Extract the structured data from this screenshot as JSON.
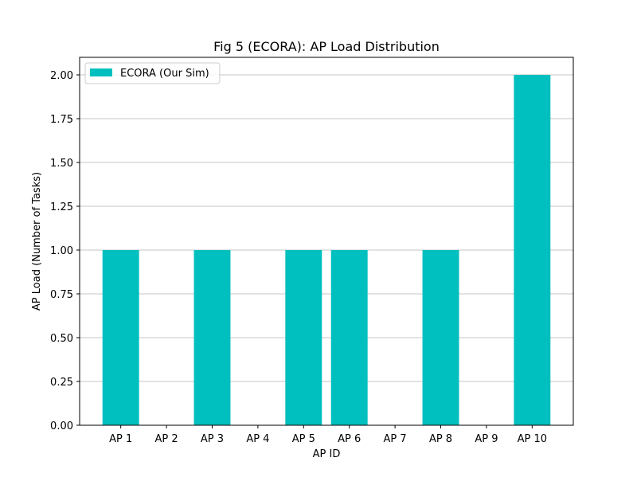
{
  "chart_data": {
    "type": "bar",
    "title": "Fig 5 (ECORA): AP Load Distribution",
    "xlabel": "AP ID",
    "ylabel": "AP Load (Number of Tasks)",
    "categories": [
      "AP 1",
      "AP 2",
      "AP 3",
      "AP 4",
      "AP 5",
      "AP 6",
      "AP 7",
      "AP 8",
      "AP 9",
      "AP 10"
    ],
    "series": [
      {
        "name": "ECORA (Our Sim)",
        "values": [
          1,
          0,
          1,
          0,
          1,
          1,
          0,
          1,
          0,
          2
        ],
        "color": "#00bfbf"
      }
    ],
    "ylim": [
      0,
      2.1
    ],
    "yticks": [
      "0.00",
      "0.25",
      "0.50",
      "0.75",
      "1.00",
      "1.25",
      "1.50",
      "1.75",
      "2.00"
    ],
    "grid": "y-major",
    "legend_position": "top-left"
  }
}
